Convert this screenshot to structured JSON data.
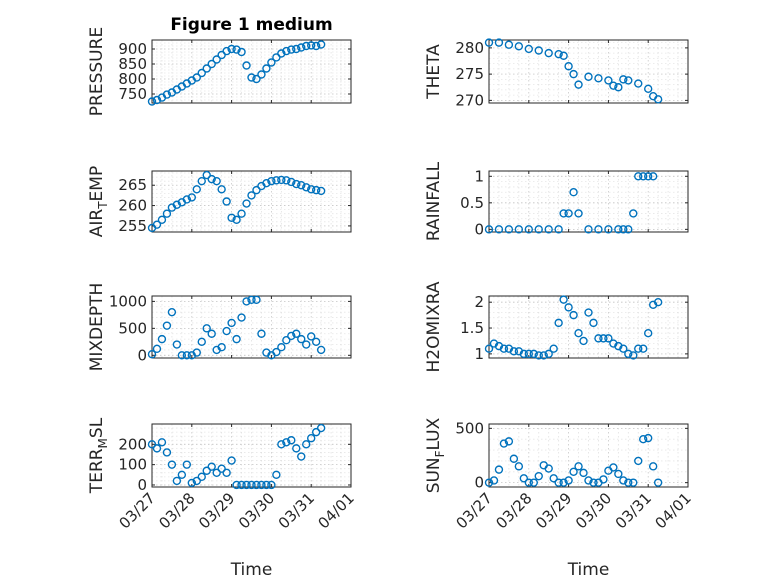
{
  "figure": {
    "title": "Figure 1 medium",
    "width": 778,
    "height": 583
  },
  "chart_data": [
    {
      "type": "scatter",
      "title": "Figure 1 medium",
      "xlabel": "",
      "ylabel": "PRESSURE",
      "ylabel_sub": "",
      "ylim": [
        720,
        930
      ],
      "yticks": [
        750,
        800,
        850,
        900
      ],
      "xlim": [
        "03/27",
        "04/01"
      ],
      "marker_color": "#0072BD",
      "grid": true,
      "x": [
        "03/27 00:00",
        "03/27 03:00",
        "03/27 06:00",
        "03/27 09:00",
        "03/27 12:00",
        "03/27 15:00",
        "03/27 18:00",
        "03/27 21:00",
        "03/28 00:00",
        "03/28 03:00",
        "03/28 06:00",
        "03/28 09:00",
        "03/28 12:00",
        "03/28 15:00",
        "03/28 18:00",
        "03/28 21:00",
        "03/29 00:00",
        "03/29 03:00",
        "03/29 06:00",
        "03/29 09:00",
        "03/29 12:00",
        "03/29 15:00",
        "03/29 18:00",
        "03/29 21:00",
        "03/30 00:00",
        "03/30 03:00",
        "03/30 06:00",
        "03/30 09:00",
        "03/30 12:00",
        "03/30 15:00",
        "03/30 18:00",
        "03/30 21:00",
        "03/31 00:00",
        "03/31 03:00",
        "03/31 06:00"
      ],
      "values": [
        725,
        730,
        738,
        748,
        755,
        765,
        775,
        785,
        795,
        805,
        820,
        835,
        850,
        865,
        880,
        893,
        900,
        898,
        890,
        845,
        805,
        800,
        815,
        835,
        855,
        872,
        885,
        893,
        898,
        900,
        905,
        910,
        912,
        910,
        915
      ]
    },
    {
      "type": "scatter",
      "title": "",
      "xlabel": "",
      "ylabel": "THETA",
      "ylabel_sub": "",
      "ylim": [
        269.5,
        281.5
      ],
      "yticks": [
        270,
        275,
        280
      ],
      "xlim": [
        "03/27",
        "04/01"
      ],
      "marker_color": "#0072BD",
      "grid": true,
      "x": [
        "03/27 00:00",
        "03/27 06:00",
        "03/27 12:00",
        "03/27 18:00",
        "03/28 00:00",
        "03/28 06:00",
        "03/28 12:00",
        "03/28 18:00",
        "03/28 21:00",
        "03/29 00:00",
        "03/29 03:00",
        "03/29 06:00",
        "03/29 12:00",
        "03/29 18:00",
        "03/30 00:00",
        "03/30 03:00",
        "03/30 06:00",
        "03/30 09:00",
        "03/30 12:00",
        "03/30 18:00",
        "03/31 00:00",
        "03/31 03:00",
        "03/31 06:00"
      ],
      "values": [
        281,
        281,
        280.6,
        280.3,
        279.8,
        279.5,
        279,
        278.8,
        278.5,
        276.5,
        275,
        273,
        274.5,
        274.2,
        273.8,
        272.8,
        272.5,
        274,
        273.8,
        273.2,
        272.2,
        270.8,
        270.2
      ]
    },
    {
      "type": "scatter",
      "title": "",
      "xlabel": "",
      "ylabel": "AIR",
      "ylabel_sub": "T",
      "ylabel_suffix": "EMP",
      "ylim": [
        253.5,
        268.5
      ],
      "yticks": [
        255,
        260,
        265
      ],
      "xlim": [
        "03/27",
        "04/01"
      ],
      "marker_color": "#0072BD",
      "grid": true,
      "x": [
        "03/27 00:00",
        "03/27 03:00",
        "03/27 06:00",
        "03/27 09:00",
        "03/27 12:00",
        "03/27 15:00",
        "03/27 18:00",
        "03/27 21:00",
        "03/28 00:00",
        "03/28 03:00",
        "03/28 06:00",
        "03/28 09:00",
        "03/28 12:00",
        "03/28 15:00",
        "03/28 18:00",
        "03/28 21:00",
        "03/29 00:00",
        "03/29 03:00",
        "03/29 06:00",
        "03/29 09:00",
        "03/29 12:00",
        "03/29 15:00",
        "03/29 18:00",
        "03/29 21:00",
        "03/30 00:00",
        "03/30 03:00",
        "03/30 06:00",
        "03/30 09:00",
        "03/30 12:00",
        "03/30 15:00",
        "03/30 18:00",
        "03/30 21:00",
        "03/31 00:00",
        "03/31 03:00",
        "03/31 06:00"
      ],
      "values": [
        254.5,
        255.3,
        256.5,
        258,
        259.5,
        260.2,
        260.8,
        261.5,
        262,
        264,
        266,
        267.5,
        266.5,
        266,
        264,
        261,
        257,
        256.5,
        258,
        260.5,
        262.5,
        263.8,
        264.8,
        265.5,
        266,
        266.2,
        266.3,
        266.2,
        265.8,
        265.3,
        265,
        264.5,
        264,
        263.8,
        263.6
      ]
    },
    {
      "type": "scatter",
      "title": "",
      "xlabel": "",
      "ylabel": "RAINFALL",
      "ylabel_sub": "",
      "ylim": [
        -0.05,
        1.1
      ],
      "yticks": [
        0,
        0.5,
        1
      ],
      "xlim": [
        "03/27",
        "04/01"
      ],
      "marker_color": "#0072BD",
      "grid": true,
      "x": [
        "03/27 00:00",
        "03/27 06:00",
        "03/27 12:00",
        "03/27 18:00",
        "03/28 00:00",
        "03/28 06:00",
        "03/28 12:00",
        "03/28 18:00",
        "03/28 21:00",
        "03/29 00:00",
        "03/29 03:00",
        "03/29 06:00",
        "03/29 12:00",
        "03/29 18:00",
        "03/30 00:00",
        "03/30 06:00",
        "03/30 09:00",
        "03/30 12:00",
        "03/30 15:00",
        "03/30 18:00",
        "03/30 21:00",
        "03/31 00:00",
        "03/31 03:00"
      ],
      "values": [
        0,
        0,
        0,
        0,
        0,
        0,
        0,
        0,
        0.3,
        0.3,
        0.7,
        0.3,
        0,
        0,
        0,
        0,
        0,
        0,
        0.3,
        1,
        1,
        1,
        1
      ]
    },
    {
      "type": "scatter",
      "title": "",
      "xlabel": "",
      "ylabel": "MIXDEPTH",
      "ylabel_sub": "",
      "ylim": [
        -50,
        1100
      ],
      "yticks": [
        0,
        500,
        1000
      ],
      "xlim": [
        "03/27",
        "04/01"
      ],
      "marker_color": "#0072BD",
      "grid": true,
      "x": [
        "03/27 00:00",
        "03/27 03:00",
        "03/27 06:00",
        "03/27 09:00",
        "03/27 12:00",
        "03/27 15:00",
        "03/27 18:00",
        "03/27 21:00",
        "03/28 00:00",
        "03/28 03:00",
        "03/28 06:00",
        "03/28 09:00",
        "03/28 12:00",
        "03/28 15:00",
        "03/28 18:00",
        "03/28 21:00",
        "03/29 00:00",
        "03/29 03:00",
        "03/29 06:00",
        "03/29 09:00",
        "03/29 12:00",
        "03/29 15:00",
        "03/29 18:00",
        "03/29 21:00",
        "03/30 00:00",
        "03/30 03:00",
        "03/30 06:00",
        "03/30 09:00",
        "03/30 12:00",
        "03/30 15:00",
        "03/30 18:00",
        "03/30 21:00",
        "03/31 00:00",
        "03/31 03:00",
        "03/31 06:00"
      ],
      "values": [
        20,
        120,
        300,
        550,
        800,
        200,
        0,
        0,
        0,
        50,
        250,
        500,
        400,
        100,
        150,
        450,
        600,
        300,
        700,
        1000,
        1030,
        1030,
        400,
        50,
        0,
        60,
        150,
        280,
        360,
        400,
        300,
        200,
        350,
        250,
        100
      ]
    },
    {
      "type": "scatter",
      "title": "",
      "xlabel": "",
      "ylabel": "H2OMIXRA",
      "ylabel_sub": "",
      "ylim": [
        0.92,
        2.12
      ],
      "yticks": [
        1,
        1.5,
        2
      ],
      "xlim": [
        "03/27",
        "04/01"
      ],
      "marker_color": "#0072BD",
      "grid": true,
      "x": [
        "03/27 00:00",
        "03/27 03:00",
        "03/27 06:00",
        "03/27 09:00",
        "03/27 12:00",
        "03/27 15:00",
        "03/27 18:00",
        "03/27 21:00",
        "03/28 00:00",
        "03/28 03:00",
        "03/28 06:00",
        "03/28 09:00",
        "03/28 12:00",
        "03/28 15:00",
        "03/28 18:00",
        "03/28 21:00",
        "03/29 00:00",
        "03/29 03:00",
        "03/29 06:00",
        "03/29 09:00",
        "03/29 12:00",
        "03/29 15:00",
        "03/29 18:00",
        "03/29 21:00",
        "03/30 00:00",
        "03/30 03:00",
        "03/30 06:00",
        "03/30 09:00",
        "03/30 12:00",
        "03/30 15:00",
        "03/30 18:00",
        "03/30 21:00",
        "03/31 00:00",
        "03/31 03:00",
        "03/31 06:00"
      ],
      "values": [
        1.1,
        1.2,
        1.15,
        1.1,
        1.1,
        1.05,
        1.05,
        1.0,
        1.0,
        1.0,
        0.97,
        0.97,
        1.0,
        1.1,
        1.6,
        2.05,
        1.9,
        1.75,
        1.4,
        1.25,
        1.8,
        1.6,
        1.3,
        1.3,
        1.3,
        1.2,
        1.15,
        1.1,
        1.0,
        0.97,
        1.1,
        1.1,
        1.4,
        1.95,
        2.0
      ]
    },
    {
      "type": "scatter",
      "title": "",
      "xlabel": "Time",
      "ylabel": "TERR",
      "ylabel_sub": "M",
      "ylabel_suffix": "SL",
      "ylim": [
        -10,
        300
      ],
      "yticks": [
        0,
        100,
        200
      ],
      "xlim": [
        "03/27",
        "04/01"
      ],
      "xticks": [
        "03/27",
        "03/28",
        "03/29",
        "03/30",
        "03/31",
        "04/01"
      ],
      "marker_color": "#0072BD",
      "grid": true,
      "x": [
        "03/27 00:00",
        "03/27 03:00",
        "03/27 06:00",
        "03/27 09:00",
        "03/27 12:00",
        "03/27 15:00",
        "03/27 18:00",
        "03/27 21:00",
        "03/28 00:00",
        "03/28 03:00",
        "03/28 06:00",
        "03/28 09:00",
        "03/28 12:00",
        "03/28 15:00",
        "03/28 18:00",
        "03/28 21:00",
        "03/29 00:00",
        "03/29 03:00",
        "03/29 06:00",
        "03/29 09:00",
        "03/29 12:00",
        "03/29 15:00",
        "03/29 18:00",
        "03/29 21:00",
        "03/30 00:00",
        "03/30 03:00",
        "03/30 06:00",
        "03/30 09:00",
        "03/30 12:00",
        "03/30 15:00",
        "03/30 18:00",
        "03/30 21:00",
        "03/31 00:00",
        "03/31 03:00",
        "03/31 06:00"
      ],
      "values": [
        200,
        180,
        210,
        160,
        100,
        20,
        50,
        100,
        10,
        20,
        40,
        70,
        90,
        60,
        80,
        60,
        120,
        0,
        0,
        0,
        0,
        0,
        0,
        0,
        0,
        50,
        200,
        210,
        220,
        180,
        140,
        200,
        230,
        260,
        280
      ]
    },
    {
      "type": "scatter",
      "title": "",
      "xlabel": "Time",
      "ylabel": "SUN",
      "ylabel_sub": "F",
      "ylabel_suffix": "LUX",
      "ylim": [
        -40,
        540
      ],
      "yticks": [
        0,
        500
      ],
      "xlim": [
        "03/27",
        "04/01"
      ],
      "xticks": [
        "03/27",
        "03/28",
        "03/29",
        "03/30",
        "03/31",
        "04/01"
      ],
      "marker_color": "#0072BD",
      "grid": true,
      "x": [
        "03/27 00:00",
        "03/27 03:00",
        "03/27 06:00",
        "03/27 09:00",
        "03/27 12:00",
        "03/27 15:00",
        "03/27 18:00",
        "03/27 21:00",
        "03/28 00:00",
        "03/28 03:00",
        "03/28 06:00",
        "03/28 09:00",
        "03/28 12:00",
        "03/28 15:00",
        "03/28 18:00",
        "03/28 21:00",
        "03/29 00:00",
        "03/29 03:00",
        "03/29 06:00",
        "03/29 09:00",
        "03/29 12:00",
        "03/29 15:00",
        "03/29 18:00",
        "03/29 21:00",
        "03/30 00:00",
        "03/30 03:00",
        "03/30 06:00",
        "03/30 09:00",
        "03/30 12:00",
        "03/30 15:00",
        "03/30 18:00",
        "03/30 21:00",
        "03/31 00:00",
        "03/31 03:00",
        "03/31 06:00"
      ],
      "values": [
        0,
        20,
        120,
        360,
        380,
        220,
        150,
        40,
        0,
        0,
        60,
        160,
        130,
        40,
        0,
        0,
        20,
        100,
        150,
        90,
        20,
        0,
        0,
        30,
        110,
        140,
        80,
        20,
        0,
        0,
        200,
        400,
        410,
        150,
        0
      ]
    }
  ]
}
